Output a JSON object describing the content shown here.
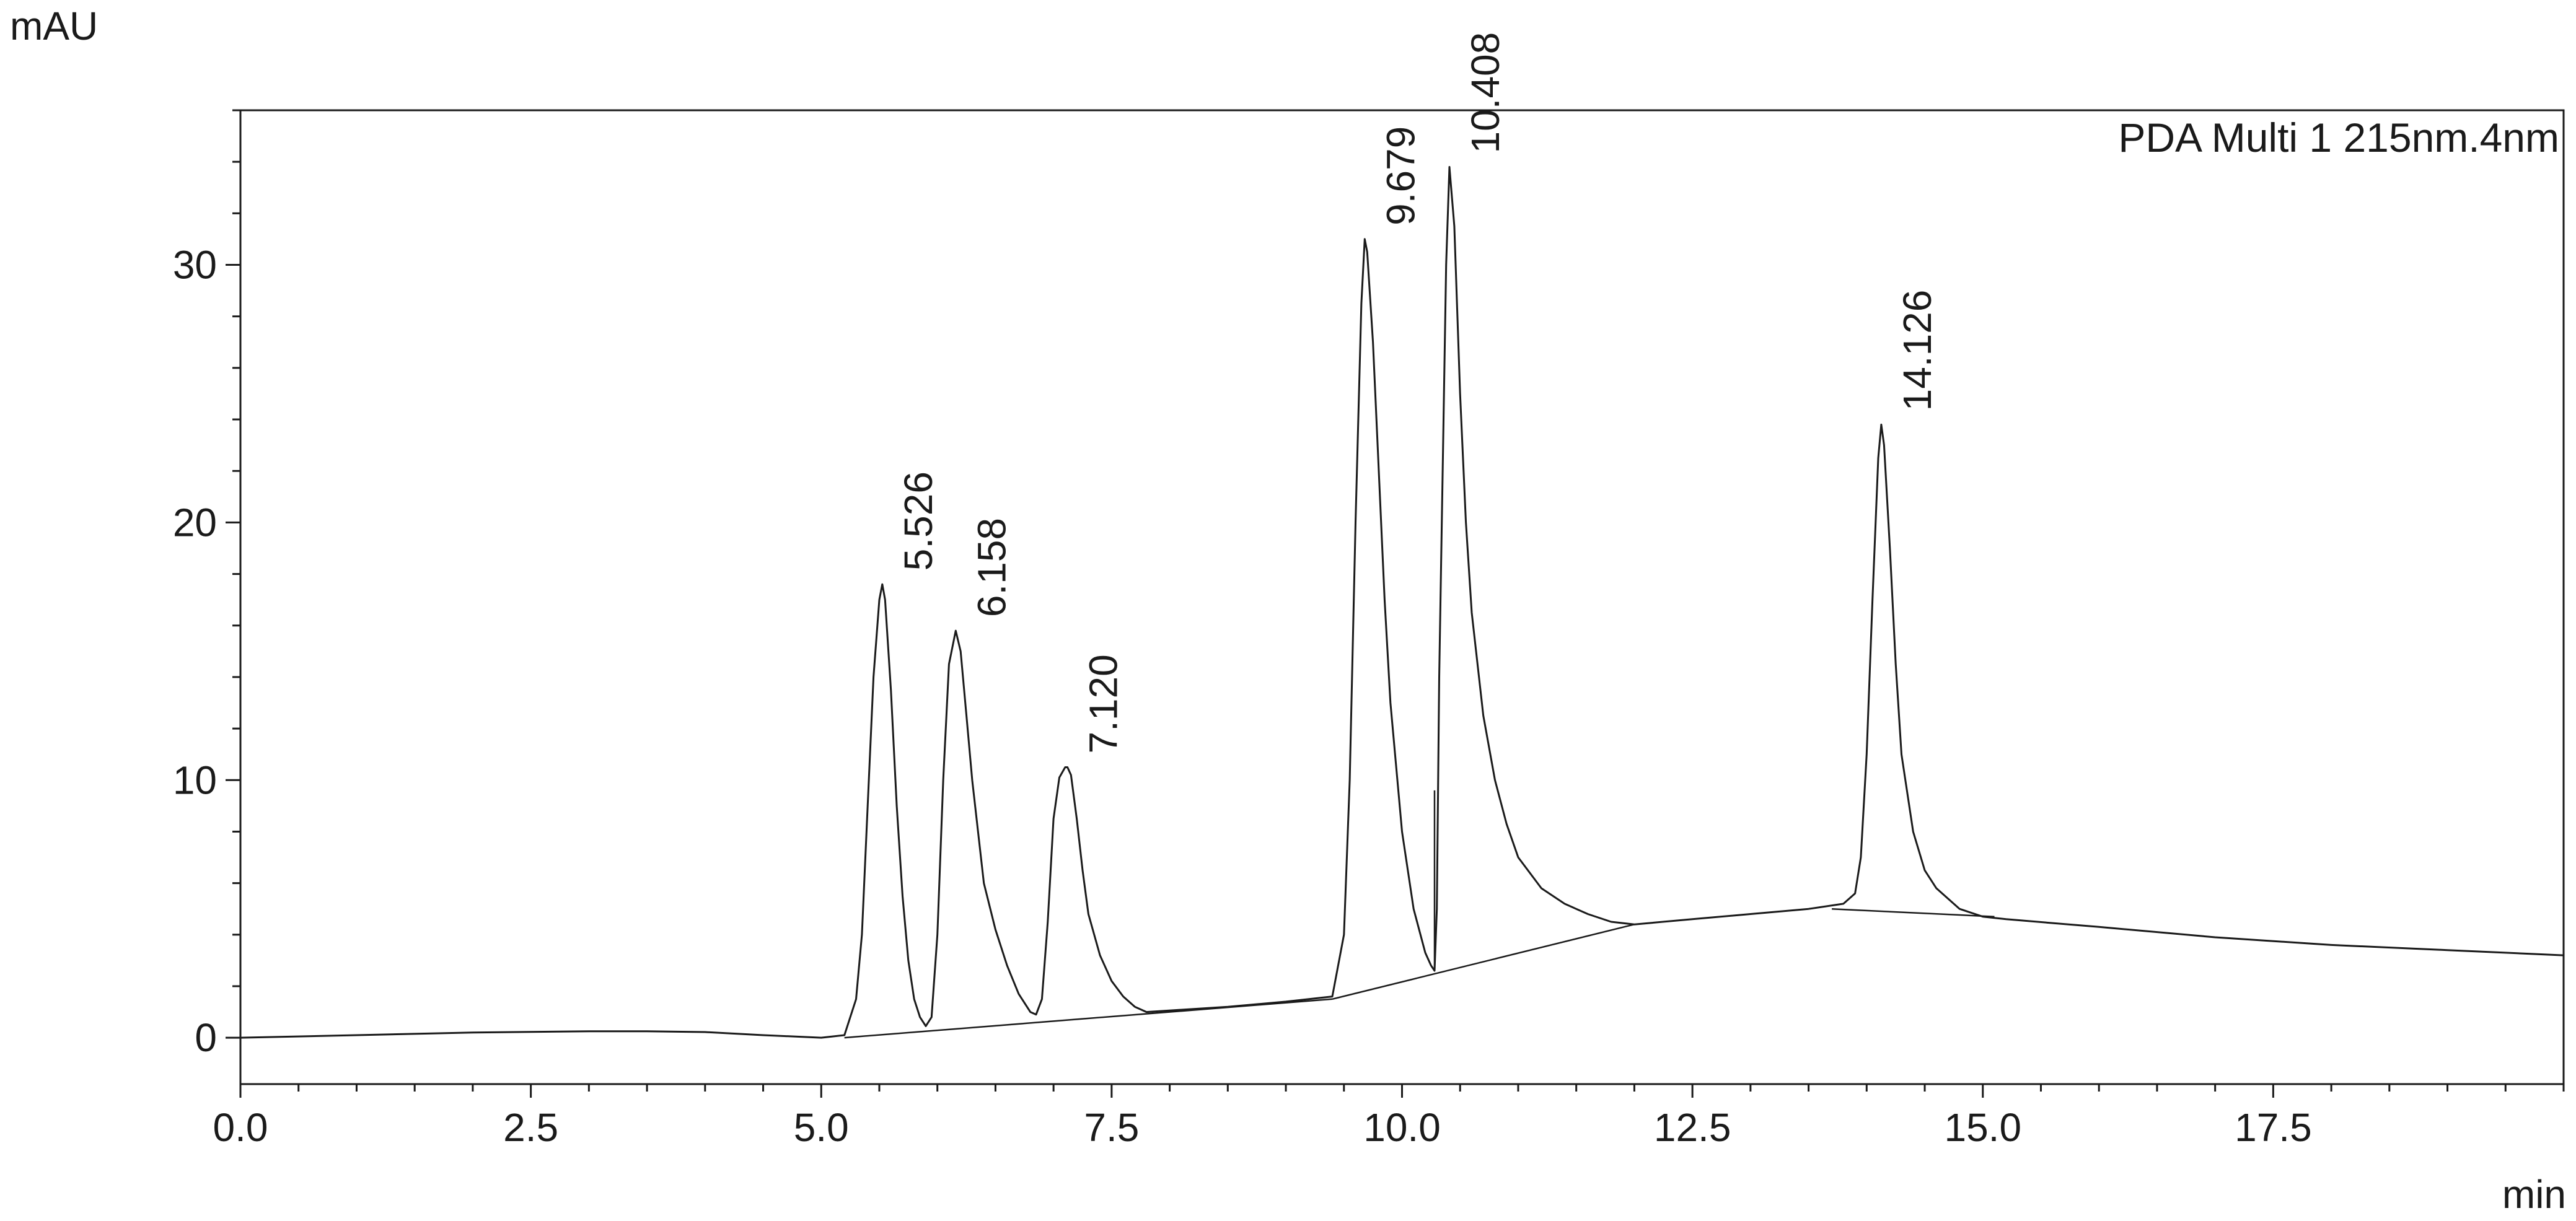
{
  "chart_data": {
    "type": "line",
    "title": "",
    "legend": {
      "text": "PDA Multi 1 215nm.4nm",
      "placement": "top-right"
    },
    "ylabel": "mAU",
    "xlabel": "min",
    "xlim": [
      0,
      20
    ],
    "ylim": [
      -1.8,
      36
    ],
    "x_ticks": [
      0.0,
      2.5,
      5.0,
      7.5,
      10.0,
      12.5,
      15.0,
      17.5
    ],
    "x_tick_labels": [
      "0.0",
      "2.5",
      "5.0",
      "7.5",
      "10.0",
      "12.5",
      "15.0",
      "17.5"
    ],
    "y_ticks": [
      0,
      10,
      20,
      30
    ],
    "y_tick_labels": [
      "0",
      "10",
      "20",
      "30"
    ],
    "x_minor_step": 0.5,
    "y_minor_step": 2,
    "grid": false,
    "peaks": [
      {
        "label": "5.526",
        "rt": 5.526,
        "height": 17.6
      },
      {
        "label": "6.158",
        "rt": 6.158,
        "height": 15.8
      },
      {
        "label": "7.120",
        "rt": 7.12,
        "height": 10.5
      },
      {
        "label": "9.679",
        "rt": 9.679,
        "height": 31.0
      },
      {
        "label": "10.408",
        "rt": 10.408,
        "height": 33.8
      },
      {
        "label": "14.126",
        "rt": 14.126,
        "height": 23.8
      }
    ],
    "series": [
      {
        "x": [
          0,
          1,
          2,
          3,
          3.5,
          4,
          4.5,
          5,
          5.2,
          5.3,
          5.35,
          5.4,
          5.45,
          5.5,
          5.526,
          5.55,
          5.6,
          5.65,
          5.7,
          5.75,
          5.8,
          5.85,
          5.9,
          5.95,
          6.0,
          6.05,
          6.1,
          6.158,
          6.2,
          6.25,
          6.3,
          6.35,
          6.4,
          6.5,
          6.6,
          6.7,
          6.8,
          6.85,
          6.9,
          6.95,
          7.0,
          7.05,
          7.1,
          7.12,
          7.15,
          7.2,
          7.25,
          7.3,
          7.4,
          7.5,
          7.6,
          7.7,
          7.8,
          8.5,
          9.0,
          9.4,
          9.5,
          9.55,
          9.6,
          9.65,
          9.679,
          9.7,
          9.75,
          9.8,
          9.85,
          9.9,
          10.0,
          10.1,
          10.2,
          10.25,
          10.28,
          10.3,
          10.32,
          10.35,
          10.38,
          10.408,
          10.45,
          10.5,
          10.55,
          10.6,
          10.7,
          10.8,
          10.9,
          11.0,
          11.2,
          11.4,
          11.6,
          11.8,
          12.0,
          12.5,
          13.0,
          13.5,
          13.8,
          13.9,
          13.95,
          14.0,
          14.05,
          14.1,
          14.126,
          14.15,
          14.2,
          14.25,
          14.3,
          14.4,
          14.5,
          14.6,
          14.8,
          15.0,
          15.2,
          16.0,
          17.0,
          18.0,
          19.0,
          20.0
        ],
        "y": [
          0.0,
          0.1,
          0.2,
          0.25,
          0.25,
          0.22,
          0.1,
          0.0,
          0.1,
          1.5,
          4.0,
          9.0,
          14.0,
          17.0,
          17.6,
          17.0,
          13.5,
          9.0,
          5.5,
          3.0,
          1.5,
          0.8,
          0.45,
          0.8,
          4.0,
          10.0,
          14.5,
          15.8,
          15.0,
          12.5,
          10.0,
          8.0,
          6.0,
          4.2,
          2.8,
          1.7,
          1.0,
          0.9,
          1.5,
          4.5,
          8.5,
          10.1,
          10.5,
          10.5,
          10.2,
          8.5,
          6.5,
          4.8,
          3.2,
          2.2,
          1.6,
          1.2,
          1.0,
          1.2,
          1.4,
          1.6,
          4.0,
          10.0,
          20.0,
          28.5,
          31.0,
          30.5,
          27.0,
          22.0,
          17.0,
          13.0,
          8.0,
          5.0,
          3.3,
          2.8,
          2.6,
          5.0,
          14.0,
          22.0,
          30.0,
          33.8,
          31.5,
          25.0,
          20.0,
          16.5,
          12.5,
          10.0,
          8.3,
          7.0,
          5.8,
          5.2,
          4.8,
          4.5,
          4.4,
          4.6,
          4.8,
          5.0,
          5.2,
          5.6,
          7.0,
          11.0,
          17.0,
          22.5,
          23.8,
          23.0,
          19.0,
          14.5,
          11.0,
          8.0,
          6.5,
          5.8,
          5.0,
          4.7,
          4.6,
          4.3,
          3.9,
          3.6,
          3.4,
          3.2
        ]
      }
    ],
    "baselines": [
      {
        "x": [
          5.2,
          9.4
        ],
        "y": [
          0.0,
          1.5
        ]
      },
      {
        "x": [
          9.4,
          12.0
        ],
        "y": [
          1.5,
          4.4
        ]
      },
      {
        "x": [
          13.7,
          15.1
        ],
        "y": [
          5.0,
          4.7
        ]
      }
    ],
    "drop_lines": [
      {
        "x": 10.28,
        "y_bottom": 2.6,
        "y_top": 2.6
      }
    ]
  }
}
